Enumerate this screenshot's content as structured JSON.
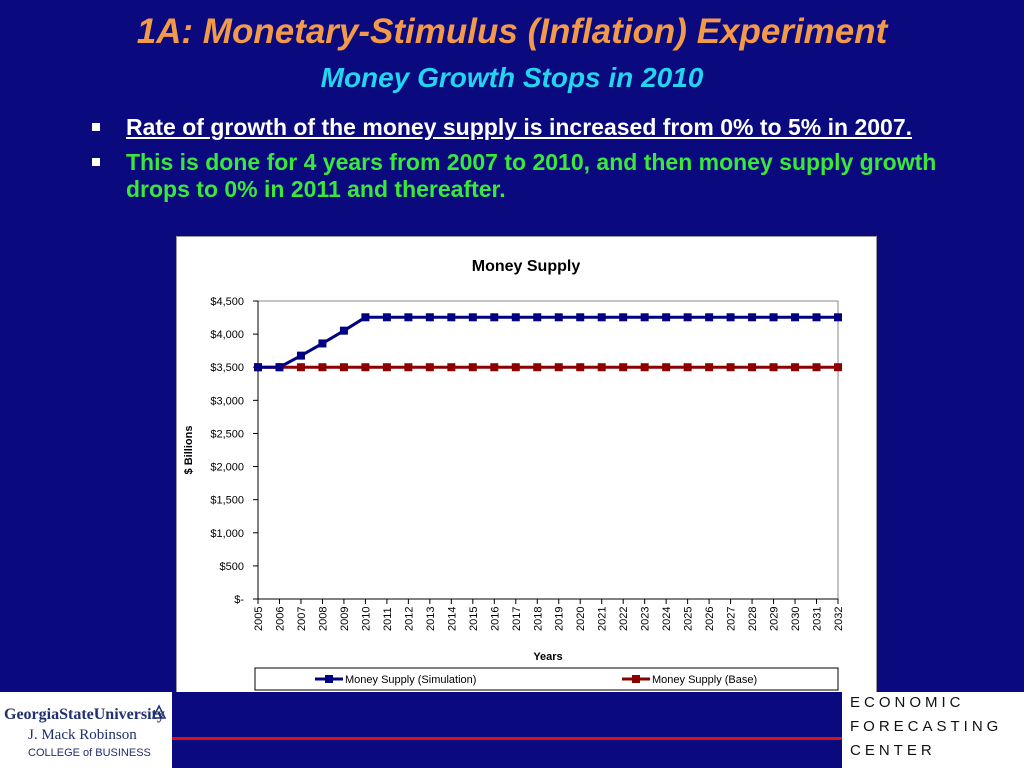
{
  "slide": {
    "title": "1A: Monetary-Stimulus (Inflation) Experiment",
    "subtitle": "Money Growth Stops in 2010",
    "bullets": [
      "Rate of growth of the money supply is increased from 0% to 5% in 2007.",
      "This is done for 4 years from 2007 to 2010, and then money supply growth drops to 0% in 2011 and thereafter."
    ]
  },
  "colors": {
    "background": "#0a0a7e",
    "title": "#f39a4a",
    "subtitle": "#22d6f0",
    "bullet2": "#39e83b",
    "simulation_series": "#000080",
    "base_series": "#8b0000",
    "accent_line": "#dd1111"
  },
  "chart_data": {
    "type": "line",
    "title": "Money Supply",
    "xlabel": "Years",
    "ylabel": "$ Billions",
    "x": [
      "2005",
      "2006",
      "2007",
      "2008",
      "2009",
      "2010",
      "2011",
      "2012",
      "2013",
      "2014",
      "2015",
      "2016",
      "2017",
      "2018",
      "2019",
      "2020",
      "2021",
      "2022",
      "2023",
      "2024",
      "2025",
      "2026",
      "2027",
      "2028",
      "2029",
      "2030",
      "2031",
      "2032"
    ],
    "ylim": [
      0,
      4500
    ],
    "yticks": [
      0,
      500,
      1000,
      1500,
      2000,
      2500,
      3000,
      3500,
      4000,
      4500
    ],
    "ytick_labels": [
      "$-",
      "$500",
      "$1,000",
      "$1,500",
      "$2,000",
      "$2,500",
      "$3,000",
      "$3,500",
      "$4,000",
      "$4,500"
    ],
    "grid": false,
    "legend_position": "bottom",
    "series": [
      {
        "name": "Money Supply (Simulation)",
        "color": "#000080",
        "marker": "square",
        "values": [
          3500,
          3500,
          3675,
          3859,
          4052,
          4254,
          4254,
          4254,
          4254,
          4254,
          4254,
          4254,
          4254,
          4254,
          4254,
          4254,
          4254,
          4254,
          4254,
          4254,
          4254,
          4254,
          4254,
          4254,
          4254,
          4254,
          4254,
          4254
        ]
      },
      {
        "name": "Money Supply (Base)",
        "color": "#8b0000",
        "marker": "square",
        "values": [
          3500,
          3500,
          3500,
          3500,
          3500,
          3500,
          3500,
          3500,
          3500,
          3500,
          3500,
          3500,
          3500,
          3500,
          3500,
          3500,
          3500,
          3500,
          3500,
          3500,
          3500,
          3500,
          3500,
          3500,
          3500,
          3500,
          3500,
          3500
        ]
      }
    ]
  },
  "logos": {
    "left": {
      "line1": "GeorgiaStateUniversity",
      "line2": "J. Mack Robinson",
      "line3": "COLLEGE of BUSINESS"
    },
    "right": {
      "line1": "ECONOMIC",
      "line2": "FORECASTING",
      "line3": "CENTER"
    }
  }
}
